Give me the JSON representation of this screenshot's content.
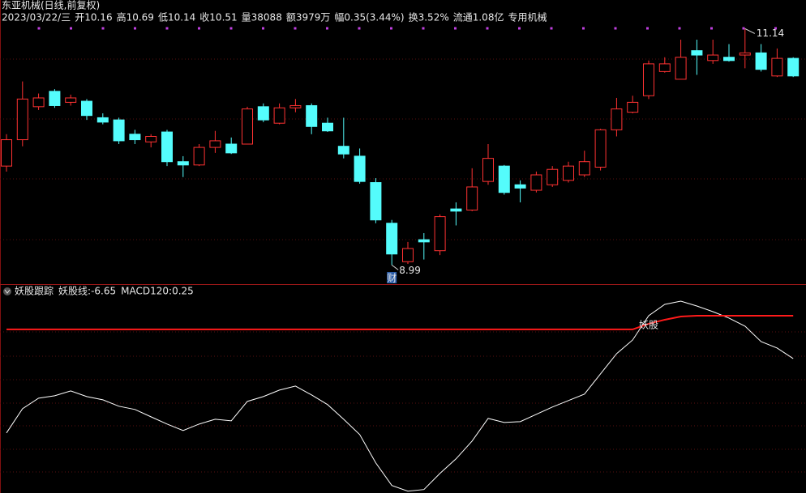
{
  "header": {
    "title": "东亚机械(日线,前复权)",
    "fields": [
      {
        "text": "2023/03/22/三",
        "color": "#c8c8c8"
      },
      {
        "text": "开10.16",
        "color": "#e8e8e8"
      },
      {
        "text": "高10.69",
        "color": "#ff4040"
      },
      {
        "text": "低10.14",
        "color": "#40e040"
      },
      {
        "text": "收10.51",
        "color": "#ff4040"
      },
      {
        "text": "量38088",
        "color": "#e8e040"
      },
      {
        "text": "额3979万",
        "color": "#e8e8e8"
      },
      {
        "text": "幅0.35(3.44%)",
        "color": "#ff4040"
      },
      {
        "text": "换3.52%",
        "color": "#e8e8e8"
      },
      {
        "text": "流通1.08亿",
        "color": "#e8e8e8"
      },
      {
        "text": "专用机械",
        "color": "#e8e040"
      }
    ]
  },
  "chart_data": [
    {
      "type": "candlestick",
      "open": [
        9.89,
        10.13,
        10.43,
        10.57,
        10.47,
        10.48,
        10.33,
        10.31,
        10.18,
        10.11,
        10.2,
        9.93,
        9.9,
        10.06,
        10.09,
        10.09,
        10.43,
        10.28,
        10.42,
        10.44,
        10.28,
        10.07,
        9.98,
        9.74,
        9.37,
        9.02,
        9.22,
        9.12,
        9.5,
        9.49,
        9.75,
        9.89,
        9.72,
        9.67,
        9.72,
        9.76,
        9.81,
        9.88,
        10.22,
        10.38,
        10.53,
        10.75,
        10.68,
        10.94,
        10.85,
        10.88,
        10.9,
        10.92,
        10.71,
        10.87
      ],
      "high": [
        10.18,
        10.66,
        10.55,
        10.59,
        10.54,
        10.5,
        10.37,
        10.33,
        10.22,
        10.18,
        10.22,
        9.98,
        10.09,
        10.21,
        10.15,
        10.43,
        10.46,
        10.46,
        10.5,
        10.46,
        10.33,
        10.33,
        10.05,
        9.78,
        9.4,
        9.2,
        9.28,
        9.45,
        9.56,
        9.87,
        10.09,
        9.9,
        9.76,
        9.84,
        9.89,
        9.93,
        10.03,
        10.23,
        10.51,
        10.53,
        10.85,
        10.88,
        11.04,
        11.04,
        11.04,
        11.0,
        11.14,
        11.0,
        10.96,
        10.88
      ],
      "low": [
        9.84,
        10.07,
        10.4,
        10.42,
        10.44,
        10.31,
        10.27,
        10.09,
        10.09,
        10.06,
        9.89,
        9.79,
        9.89,
        10.01,
        10.0,
        10.09,
        10.29,
        10.27,
        10.38,
        10.18,
        10.2,
        9.96,
        9.73,
        9.37,
        8.99,
        9.0,
        9.04,
        9.08,
        9.35,
        9.48,
        9.72,
        9.63,
        9.56,
        9.65,
        9.7,
        9.74,
        9.79,
        9.85,
        10.16,
        10.37,
        10.5,
        10.74,
        10.68,
        10.72,
        10.82,
        10.84,
        10.78,
        10.75,
        10.7,
        10.7
      ],
      "close": [
        10.13,
        10.5,
        10.51,
        10.44,
        10.51,
        10.35,
        10.29,
        10.12,
        10.13,
        10.16,
        9.93,
        9.9,
        10.06,
        10.12,
        10.01,
        10.41,
        10.31,
        10.42,
        10.44,
        10.25,
        10.21,
        10.0,
        9.75,
        9.4,
        9.09,
        9.14,
        9.2,
        9.43,
        9.48,
        9.7,
        9.96,
        9.65,
        9.69,
        9.81,
        9.86,
        9.89,
        9.93,
        10.22,
        10.41,
        10.47,
        10.82,
        10.82,
        10.88,
        10.9,
        10.9,
        10.85,
        10.92,
        10.77,
        10.87,
        10.71
      ],
      "up_color": "#ff3232",
      "down_color": "#54fcfc",
      "ylim": [
        8.86,
        11.18
      ],
      "high_marker_index": 46,
      "low_marker_index": 24,
      "event_marker": {
        "index": 24,
        "label": "财"
      }
    },
    {
      "type": "line",
      "title": "妖股跟踪",
      "label_separator": ": ",
      "series": [
        {
          "name": "妖股线",
          "color": "#ffffff",
          "values": [
            -18.63,
            -14.72,
            -13.03,
            -12.64,
            -11.86,
            -12.77,
            -13.29,
            -14.33,
            -14.85,
            -16.03,
            -17.2,
            -18.24,
            -17.2,
            -16.42,
            -16.68,
            -13.55,
            -12.77,
            -11.73,
            -11.08,
            -12.51,
            -14.07,
            -16.42,
            -18.89,
            -23.45,
            -27.09,
            -28.0,
            -27.74,
            -25.14,
            -22.8,
            -19.93,
            -16.29,
            -16.94,
            -16.81,
            -15.63,
            -14.46,
            -13.42,
            -12.38,
            -9.12,
            -5.87,
            -3.66,
            0.25,
            2.07,
            2.59,
            1.81,
            0.9,
            -0.14,
            -1.44,
            -3.92,
            -4.96,
            -6.65
          ]
        },
        {
          "name": "MACD120",
          "color": "#ff1a1a",
          "values": [
            -1.96,
            -1.96,
            -1.96,
            -1.96,
            -1.96,
            -1.96,
            -1.96,
            -1.96,
            -1.96,
            -1.96,
            -1.96,
            -1.96,
            -1.96,
            -1.96,
            -1.96,
            -1.96,
            -1.96,
            -1.96,
            -1.96,
            -1.96,
            -1.96,
            -1.96,
            -1.96,
            -1.96,
            -1.96,
            -1.96,
            -1.96,
            -1.96,
            -1.96,
            -1.96,
            -1.96,
            -1.96,
            -1.96,
            -1.96,
            -1.96,
            -1.96,
            -1.96,
            -1.96,
            -1.96,
            -1.96,
            -1.05,
            -0.4,
            0.12,
            0.25,
            0.25,
            0.25,
            0.25,
            0.25,
            0.25,
            0.25
          ]
        }
      ],
      "ylim": [
        -28.3,
        5.2
      ],
      "annotation": {
        "index": 40,
        "label": "妖股"
      }
    }
  ]
}
